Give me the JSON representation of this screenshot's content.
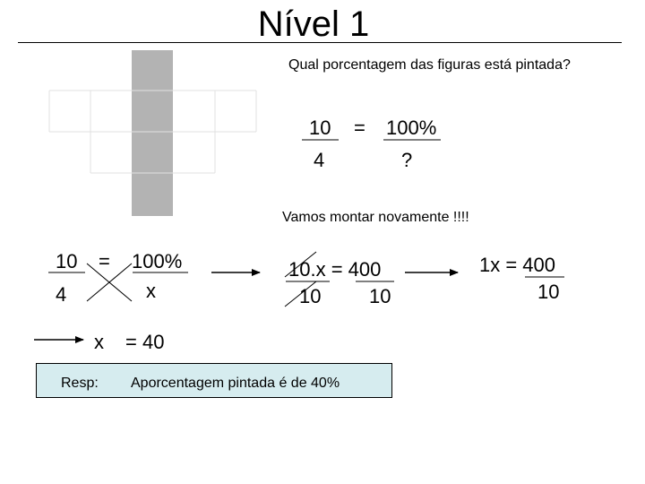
{
  "title": "Nível 1",
  "question": "Qual porcentagem das figuras está pintada?",
  "proportion_1": {
    "num_left": "10",
    "equals": "=",
    "num_right": "100%",
    "den_left": "4",
    "den_right": "?"
  },
  "vamos": "Vamos montar novamente !!!!",
  "proportion_2": {
    "num_left": "10",
    "equals": "=",
    "num_right": "100%",
    "den_left": "4",
    "den_right": "x"
  },
  "step_2": {
    "numerator": "10.x = 400",
    "den_left": "10",
    "den_right": "10"
  },
  "step_3": {
    "numerator": "1x = 400",
    "denominator": "10"
  },
  "result": {
    "var": "x",
    "rest": "= 40"
  },
  "answer": {
    "label": "Resp:",
    "text": "Aporcentagem pintada é de  40%"
  },
  "colors": {
    "shaded": "#b3b3b3",
    "grid_line": "#e0e0e0",
    "answer_bg": "#d6ecef"
  }
}
